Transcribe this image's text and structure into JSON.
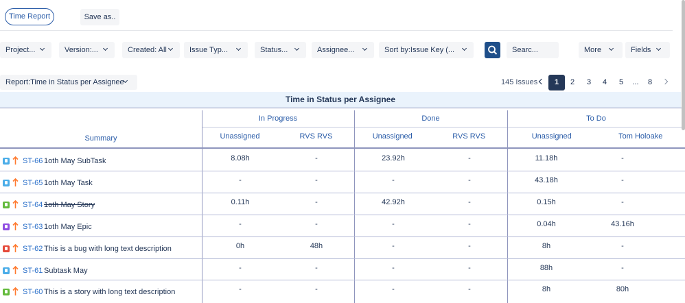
{
  "toolbar": {
    "buttons": [
      "Time Report",
      "Save as.."
    ]
  },
  "filters": [
    "Project...",
    "Version:...",
    "Created: All",
    "Issue Typ...",
    "Status...",
    "Assignee...",
    "Sort by:Issue Key (..."
  ],
  "search": "Searc...",
  "more_filters": [
    "More",
    "Fields"
  ],
  "report_selector": "Report:Time in Status per Assignee",
  "pagination": {
    "count": "145 Issues",
    "pages": [
      "1",
      "2",
      "3",
      "4",
      "5",
      "...",
      "8"
    ],
    "current": "1"
  },
  "table": {
    "title": "Time in Status per Assignee",
    "summary_header": "Summary",
    "groups": [
      {
        "status": "In Progress",
        "assignees": [
          "Unassigned",
          "RVS RVS"
        ]
      },
      {
        "status": "Done",
        "assignees": [
          "Unassigned",
          "RVS RVS"
        ]
      },
      {
        "status": "To Do",
        "assignees": [
          "Unassigned",
          "Tom Holoake"
        ]
      }
    ],
    "rows": [
      {
        "icon_color": "#4bade8",
        "key": "ST-66",
        "summary": "1oth May SubTask",
        "cells": [
          "8.08h",
          "-",
          "23.92h",
          "-",
          "11.18h",
          "-"
        ]
      },
      {
        "icon_color": "#4bade8",
        "key": "ST-65",
        "summary": "1oth May Task",
        "cells": [
          "-",
          "-",
          "-",
          "-",
          "43.18h",
          "-"
        ]
      },
      {
        "icon_color": "#63ba3c",
        "key": "ST-64",
        "summary": "1oth May Story",
        "strike": true,
        "cells": [
          "0.11h",
          "-",
          "42.92h",
          "-",
          "0.15h",
          "-"
        ]
      },
      {
        "icon_color": "#904ee2",
        "key": "ST-63",
        "summary": "1oth May Epic",
        "cells": [
          "-",
          "-",
          "-",
          "-",
          "0.04h",
          "43.16h"
        ]
      },
      {
        "icon_color": "#e5493a",
        "key": "ST-62",
        "summary": "This is a bug with long text description",
        "cells": [
          "0h",
          "48h",
          "-",
          "-",
          "8h",
          "-"
        ]
      },
      {
        "icon_color": "#4bade8",
        "key": "ST-61",
        "summary": "Subtask May",
        "cells": [
          "-",
          "-",
          "-",
          "-",
          "88h",
          "-"
        ]
      },
      {
        "icon_color": "#63ba3c",
        "key": "ST-60",
        "summary": "This is a story with long text description",
        "cells": [
          "-",
          "-",
          "-",
          "-",
          "8h",
          "80h"
        ]
      }
    ]
  }
}
